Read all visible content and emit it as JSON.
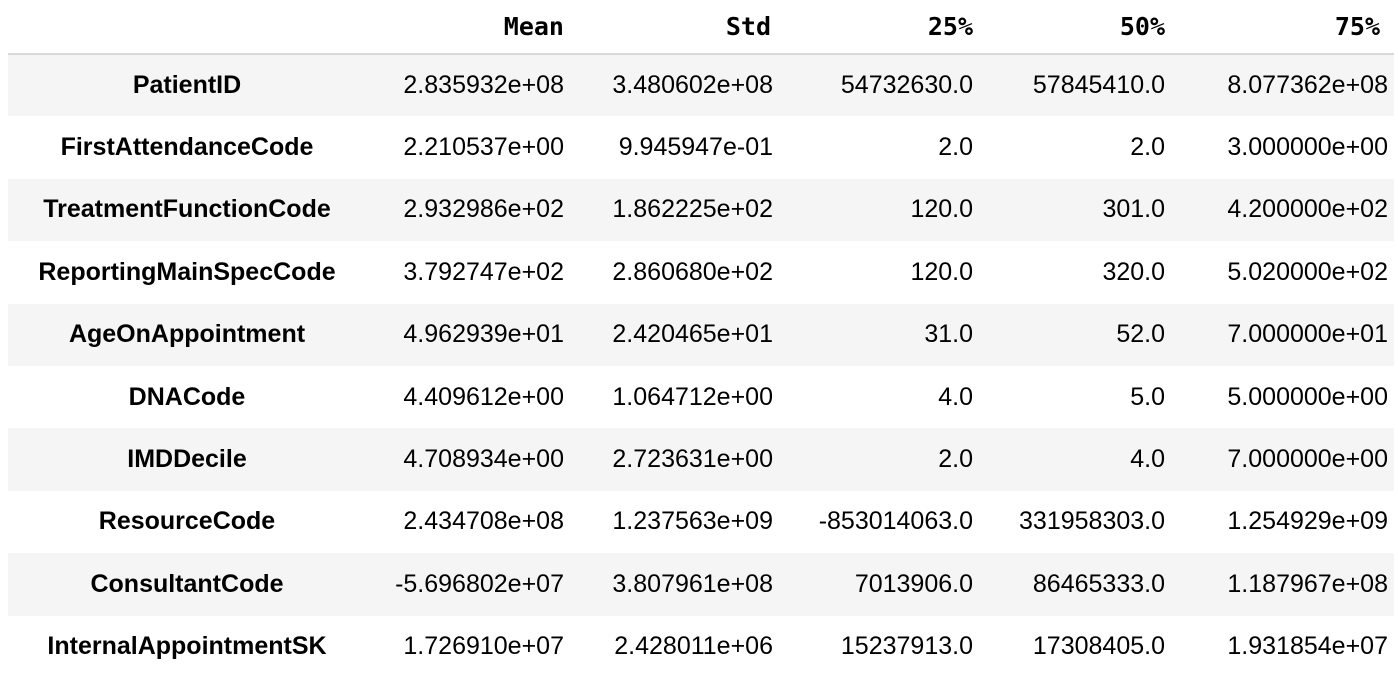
{
  "table": {
    "columns": [
      "Mean",
      "Std",
      "25%",
      "50%",
      "75%"
    ],
    "rows": [
      {
        "index": "PatientID",
        "values": [
          "2.835932e+08",
          "3.480602e+08",
          "54732630.0",
          "57845410.0",
          "8.077362e+08"
        ]
      },
      {
        "index": "FirstAttendanceCode",
        "values": [
          "2.210537e+00",
          "9.945947e-01",
          "2.0",
          "2.0",
          "3.000000e+00"
        ]
      },
      {
        "index": "TreatmentFunctionCode",
        "values": [
          "2.932986e+02",
          "1.862225e+02",
          "120.0",
          "301.0",
          "4.200000e+02"
        ]
      },
      {
        "index": "ReportingMainSpecCode",
        "values": [
          "3.792747e+02",
          "2.860680e+02",
          "120.0",
          "320.0",
          "5.020000e+02"
        ]
      },
      {
        "index": "AgeOnAppointment",
        "values": [
          "4.962939e+01",
          "2.420465e+01",
          "31.0",
          "52.0",
          "7.000000e+01"
        ]
      },
      {
        "index": "DNACode",
        "values": [
          "4.409612e+00",
          "1.064712e+00",
          "4.0",
          "5.0",
          "5.000000e+00"
        ]
      },
      {
        "index": "IMDDecile",
        "values": [
          "4.708934e+00",
          "2.723631e+00",
          "2.0",
          "4.0",
          "7.000000e+00"
        ]
      },
      {
        "index": "ResourceCode",
        "values": [
          "2.434708e+08",
          "1.237563e+09",
          "-853014063.0",
          "331958303.0",
          "1.254929e+09"
        ]
      },
      {
        "index": "ConsultantCode",
        "values": [
          "-5.696802e+07",
          "3.807961e+08",
          "7013906.0",
          "86465333.0",
          "1.187967e+08"
        ]
      },
      {
        "index": "InternalAppointmentSK",
        "values": [
          "1.726910e+07",
          "2.428011e+06",
          "15237913.0",
          "17308405.0",
          "1.931854e+07"
        ]
      }
    ]
  }
}
